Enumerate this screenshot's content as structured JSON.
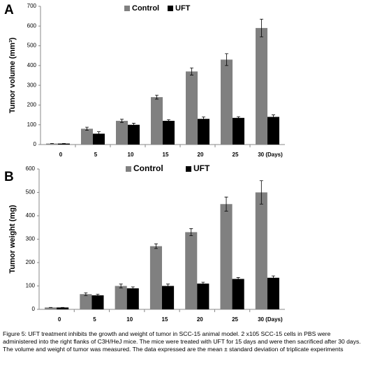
{
  "chart_data": [
    {
      "type": "bar",
      "panel_label": "A",
      "y_label": "Tumor volume (mm³)",
      "categories": [
        "0",
        "5",
        "10",
        "15",
        "20",
        "25",
        "30 (Days)"
      ],
      "series": [
        {
          "name": "Control",
          "color": "#808080",
          "values": [
            5,
            80,
            120,
            240,
            370,
            430,
            590
          ],
          "errors": [
            0,
            8,
            8,
            10,
            18,
            30,
            45
          ]
        },
        {
          "name": "UFT",
          "color": "#000000",
          "values": [
            5,
            55,
            100,
            120,
            130,
            135,
            140
          ],
          "errors": [
            0,
            10,
            8,
            6,
            10,
            6,
            10
          ]
        }
      ],
      "ylim": [
        0,
        700
      ],
      "yticks": [
        0,
        100,
        200,
        300,
        400,
        500,
        600,
        700
      ],
      "grid": false,
      "legend": "top"
    },
    {
      "type": "bar",
      "panel_label": "B",
      "y_label": "Tumor weight (mg)",
      "categories": [
        "0",
        "5",
        "10",
        "15",
        "20",
        "25",
        "30 (Days)"
      ],
      "series": [
        {
          "name": "Control",
          "color": "#808080",
          "values": [
            8,
            65,
            100,
            270,
            330,
            450,
            500
          ],
          "errors": [
            0,
            6,
            8,
            10,
            15,
            30,
            50
          ]
        },
        {
          "name": "UFT",
          "color": "#000000",
          "values": [
            8,
            60,
            90,
            100,
            110,
            130,
            135
          ],
          "errors": [
            0,
            5,
            6,
            8,
            6,
            6,
            8
          ]
        }
      ],
      "ylim": [
        0,
        600
      ],
      "yticks": [
        0,
        100,
        200,
        300,
        400,
        500,
        600
      ],
      "grid": false,
      "legend": "top"
    }
  ],
  "caption": "Figure 5: UFT treatment inhibits the growth and weight of tumor in SCC-15 animal model. 2 x105 SCC-15 cells in PBS were administered into the right flanks of C3H/HeJ mice. The mice were treated with UFT for 15 days and were then sacrificed after 30 days. The volume and weight of tumor was measured. The data expressed are the mean ± standard deviation of triplicate experiments"
}
